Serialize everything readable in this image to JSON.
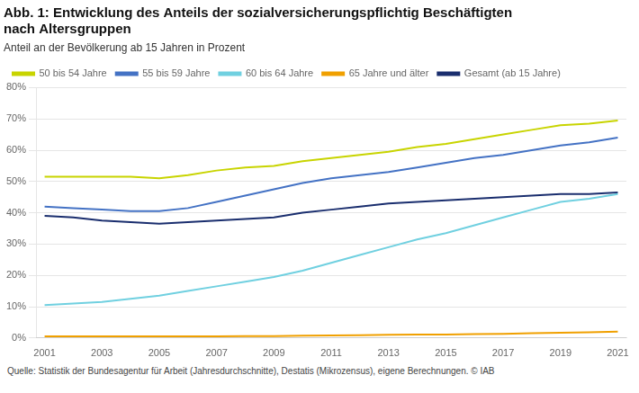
{
  "chart_data": {
    "type": "line",
    "title": [
      "Abb. 1: Entwicklung des Anteils der sozialversicherungspflichtig Beschäftigten",
      "nach Altersgruppen"
    ],
    "subtitle": "Anteil an der Bevölkerung ab 15 Jahren in Prozent",
    "source": "Quelle: Statistik der Bundesagentur für Arbeit (Jahresdurchschnitte), Destatis (Mikrozensus), eigene Berechnungen. © IAB",
    "x": [
      2001,
      2002,
      2003,
      2004,
      2005,
      2006,
      2007,
      2008,
      2009,
      2010,
      2011,
      2012,
      2013,
      2014,
      2015,
      2016,
      2017,
      2018,
      2019,
      2020,
      2021
    ],
    "series": [
      {
        "name": "50 bis 54 Jahre",
        "color": "#c8d400",
        "values": [
          51.5,
          51.5,
          51.5,
          51.5,
          51.0,
          52.0,
          53.5,
          54.5,
          55.0,
          56.5,
          57.5,
          58.5,
          59.5,
          61.0,
          62.0,
          63.5,
          65.0,
          66.5,
          68.0,
          68.5,
          69.5
        ]
      },
      {
        "name": "55 bis 59 Jahre",
        "color": "#4472c4",
        "values": [
          42.0,
          41.5,
          41.0,
          40.5,
          40.5,
          41.5,
          43.5,
          45.5,
          47.5,
          49.5,
          51.0,
          52.0,
          53.0,
          54.5,
          56.0,
          57.5,
          58.5,
          60.0,
          61.5,
          62.5,
          64.0
        ]
      },
      {
        "name": "60 bis 64 Jahre",
        "color": "#70d0e0",
        "values": [
          10.5,
          11.0,
          11.5,
          12.5,
          13.5,
          15.0,
          16.5,
          18.0,
          19.5,
          21.5,
          24.0,
          26.5,
          29.0,
          31.5,
          33.5,
          36.0,
          38.5,
          41.0,
          43.5,
          44.5,
          46.0
        ]
      },
      {
        "name": "65 Jahre und älter",
        "color": "#f0a000",
        "values": [
          0.5,
          0.5,
          0.5,
          0.5,
          0.5,
          0.5,
          0.5,
          0.6,
          0.6,
          0.7,
          0.8,
          0.9,
          1.0,
          1.1,
          1.1,
          1.2,
          1.3,
          1.5,
          1.7,
          1.8,
          2.0
        ]
      },
      {
        "name": "Gesamt (ab 15 Jahre)",
        "color": "#1a2e6e",
        "values": [
          39.0,
          38.5,
          37.5,
          37.0,
          36.5,
          37.0,
          37.5,
          38.0,
          38.5,
          40.0,
          41.0,
          42.0,
          43.0,
          43.5,
          44.0,
          44.5,
          45.0,
          45.5,
          46.0,
          46.0,
          46.5
        ]
      }
    ],
    "xlim": [
      2000.7,
      2021.3
    ],
    "xticks": [
      2001,
      2003,
      2005,
      2007,
      2009,
      2011,
      2013,
      2015,
      2017,
      2019,
      2021
    ],
    "ylim": [
      0,
      80
    ],
    "yticks": [
      {
        "value": 0,
        "label": "0%"
      },
      {
        "value": 10,
        "label": "10%"
      },
      {
        "value": 20,
        "label": "20%"
      },
      {
        "value": 30,
        "label": "30%"
      },
      {
        "value": 40,
        "label": "40%"
      },
      {
        "value": 50,
        "label": "50%"
      },
      {
        "value": 60,
        "label": "60%"
      },
      {
        "value": 70,
        "label": "70%"
      },
      {
        "value": 80,
        "label": "80%"
      }
    ],
    "grid": "y",
    "legend": "top"
  }
}
